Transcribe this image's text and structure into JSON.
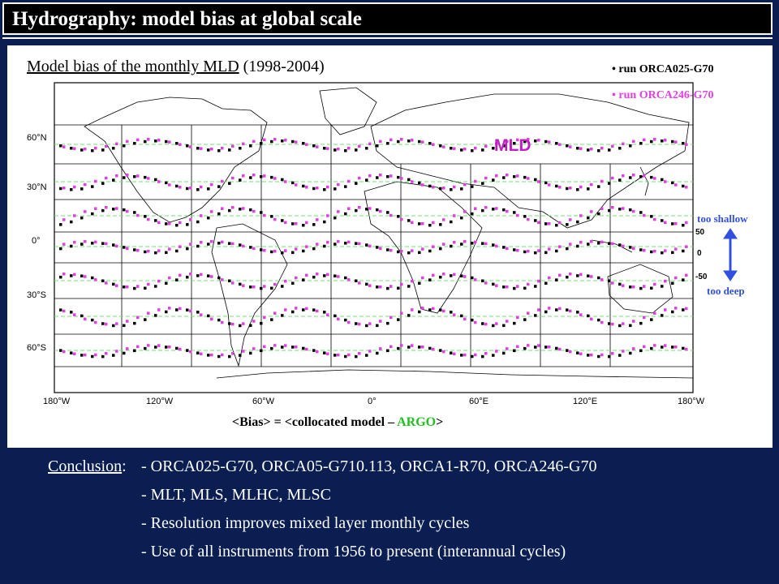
{
  "title": "Hydrography: model bias at global scale",
  "caption": {
    "main": "Model bias of the monthly MLD",
    "years": "(1998-2004)"
  },
  "legend": [
    {
      "label": "run ORCA025-G70",
      "color": "#000000"
    },
    {
      "label": "run ORCA246-G70",
      "color": "#e040e0"
    }
  ],
  "map_label": "MLD",
  "scale": {
    "top": "50",
    "mid": "0",
    "bottom": "-50",
    "shallow": "too shallow",
    "deep": "too deep"
  },
  "axes": {
    "lat_labels": [
      "60°N",
      "30°N",
      "0°",
      "30°S",
      "60°S"
    ],
    "lon_labels": [
      "180°W",
      "120°W",
      "60°W",
      "0°",
      "60°E",
      "120°E",
      "180°W"
    ]
  },
  "formula": {
    "lhs": "<Bias> = <collocated model – ",
    "argo": "ARGO",
    "rhs": ">"
  },
  "conclusion": {
    "head": "Conclusion",
    "sep": ":",
    "lines": [
      "- ORCA025-G70, ORCA05-G710.113, ORCA1-R70, ORCA246-G70",
      "- MLT, MLS, MLHC, MLSC",
      "- Resolution improves mixed layer monthly cycles",
      "- Use of all instruments from 1956 to present (interannual cycles)"
    ]
  },
  "colors": {
    "background": "#0b1e52",
    "run1": "#000000",
    "run2": "#e040e0",
    "reference": "#70e070",
    "arrow": "#3050e0"
  }
}
